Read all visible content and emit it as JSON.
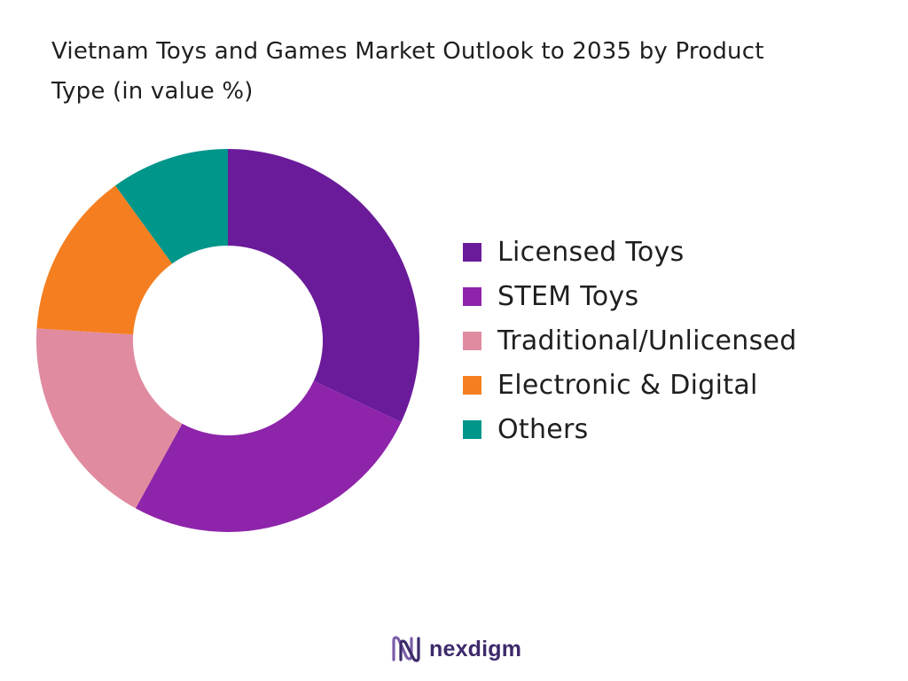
{
  "header": {
    "title_line1": "Vietnam Toys and Games Market Outlook to 2035 by Product",
    "title_line2": "Type (in value %)"
  },
  "chart_data": {
    "type": "pie",
    "variant": "donut",
    "title": "Vietnam Toys and Games Market Outlook to 2035 by Product Type (in value %)",
    "categories": [
      "Licensed Toys",
      "STEM Toys",
      "Traditional/Unlicensed",
      "Electronic & Digital",
      "Others"
    ],
    "values": [
      32,
      26,
      18,
      14,
      10
    ],
    "colors": [
      "#6a1b9a",
      "#8e24aa",
      "#e08ba0",
      "#f57f20",
      "#00968a"
    ],
    "legend_position": "right",
    "data_labels": false
  },
  "branding": {
    "logo_text": "nexdigm",
    "logo_color": "#3d2a6b",
    "logo_accent": "#7b5ea8"
  }
}
